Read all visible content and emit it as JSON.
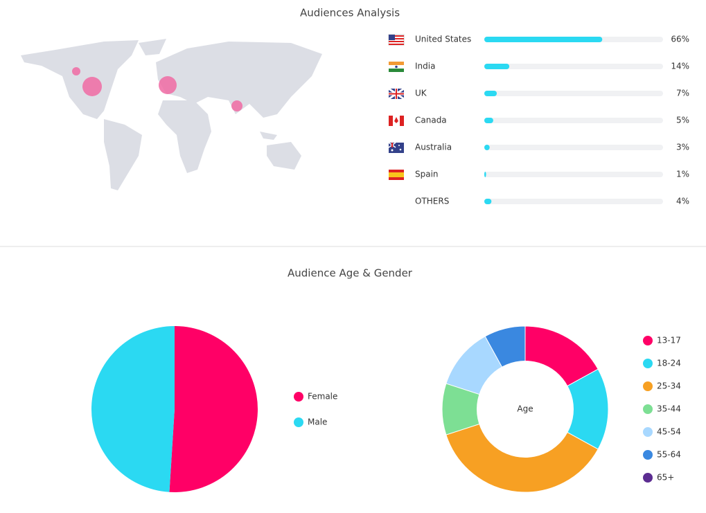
{
  "chart_data": [
    {
      "type": "progress",
      "title": "Audiences Analysis",
      "categories": [
        "United States",
        "India",
        "UK",
        "Canada",
        "Australia",
        "Spain",
        "OTHERS"
      ],
      "values": [
        66,
        14,
        7,
        5,
        3,
        1,
        4
      ],
      "value_labels": [
        "66%",
        "14%",
        "7%",
        "5%",
        "3%",
        "1%",
        "4%"
      ],
      "color": "#2bd9f2",
      "xlim": [
        0,
        100
      ]
    },
    {
      "type": "pie",
      "title": "Audience Age & Gender",
      "categories": [
        "Female",
        "Male"
      ],
      "values": [
        51,
        49
      ],
      "colors": [
        "#ff0066",
        "#2bd9f2"
      ]
    },
    {
      "type": "donut",
      "center_label": "Age",
      "categories": [
        "13-17",
        "18-24",
        "25-34",
        "35-44",
        "45-54",
        "55-64",
        "65+"
      ],
      "values": [
        17,
        16,
        37,
        10,
        12,
        8,
        0
      ],
      "colors": [
        "#ff0066",
        "#2bd9f2",
        "#f7a023",
        "#7ddf94",
        "#a8d8ff",
        "#3a88e0",
        "#5c2d91"
      ]
    }
  ]
}
